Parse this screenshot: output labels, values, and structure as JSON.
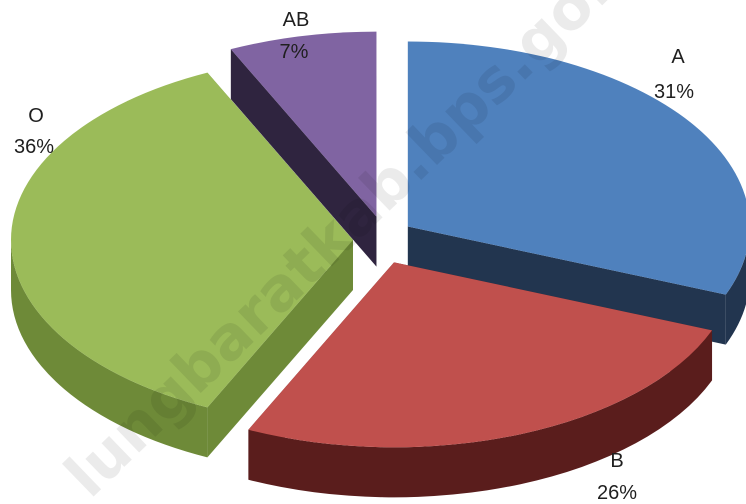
{
  "chart_data": {
    "type": "pie",
    "style": "3d-exploded",
    "categories": [
      "A",
      "B",
      "O",
      "AB"
    ],
    "values": [
      31,
      26,
      36,
      7
    ],
    "value_suffix": "%",
    "colors": {
      "A": {
        "top": "#4f81bd",
        "side": "#22354f"
      },
      "B": {
        "top": "#c0504d",
        "side": "#5a1d1c"
      },
      "O": {
        "top": "#9bbb59",
        "side": "#6e8a38"
      },
      "AB": {
        "top": "#8064a2",
        "side": "#2f243f"
      }
    },
    "labels": [
      {
        "category": "A",
        "name": "A",
        "percent": "31%"
      },
      {
        "category": "B",
        "name": "B",
        "percent": "26%"
      },
      {
        "category": "O",
        "name": "O",
        "percent": "36%"
      },
      {
        "category": "AB",
        "name": "AB",
        "percent": "7%"
      }
    ],
    "title": "",
    "legend": "none",
    "watermark": "lungbaratkab.bps.go.id"
  }
}
